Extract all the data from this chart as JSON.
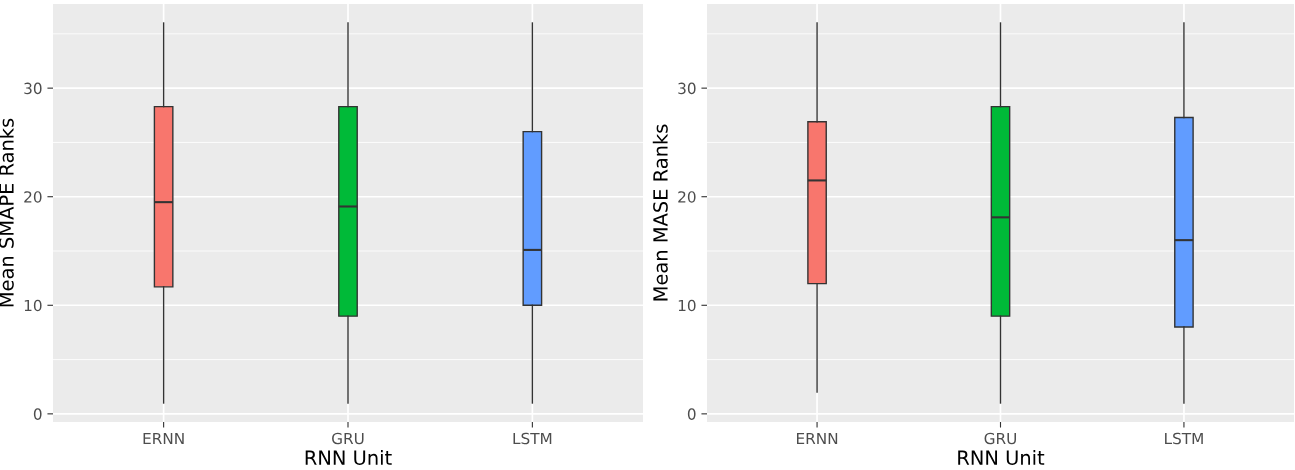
{
  "chart_data": [
    {
      "type": "box",
      "xlabel": "RNN Unit",
      "ylabel": "Mean SMAPE Ranks",
      "categories": [
        "ERNN",
        "GRU",
        "LSTM"
      ],
      "colors": [
        "#f8766d",
        "#00ba38",
        "#619cff"
      ],
      "ylim": [
        -0.75,
        37.75
      ],
      "yticks": [
        0,
        10,
        20,
        30
      ],
      "grid": true,
      "boxes": [
        {
          "low": 1,
          "q1": 11.7,
          "median": 19.5,
          "q3": 28.3,
          "high": 36
        },
        {
          "low": 1,
          "q1": 9,
          "median": 19.1,
          "q3": 28.3,
          "high": 36
        },
        {
          "low": 1,
          "q1": 10,
          "median": 15.1,
          "q3": 26,
          "high": 36
        }
      ]
    },
    {
      "type": "box",
      "xlabel": "RNN Unit",
      "ylabel": "Mean MASE Ranks",
      "categories": [
        "ERNN",
        "GRU",
        "LSTM"
      ],
      "colors": [
        "#f8766d",
        "#00ba38",
        "#619cff"
      ],
      "ylim": [
        -0.75,
        37.75
      ],
      "yticks": [
        0,
        10,
        20,
        30
      ],
      "grid": true,
      "boxes": [
        {
          "low": 2,
          "q1": 12,
          "median": 21.5,
          "q3": 26.9,
          "high": 36
        },
        {
          "low": 1,
          "q1": 9,
          "median": 18.1,
          "q3": 28.3,
          "high": 36
        },
        {
          "low": 1,
          "q1": 8,
          "median": 16,
          "q3": 27.3,
          "high": 36
        }
      ]
    }
  ]
}
